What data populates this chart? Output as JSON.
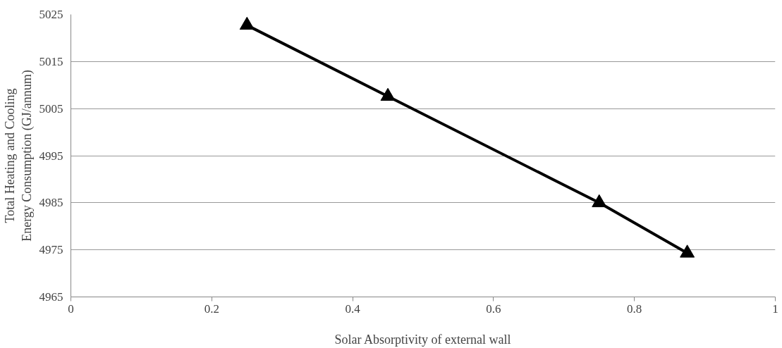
{
  "chart_data": {
    "type": "line",
    "xlabel": "Solar Absorptivity of external wall",
    "ylabel": "Total Heating and Cooling Energy Consumption (GJ/annum)",
    "x": [
      0.25,
      0.45,
      0.75,
      0.875
    ],
    "series": [
      {
        "color": "#000000",
        "values": [
          5022.7,
          5007.6,
          4985,
          4974.3
        ]
      }
    ],
    "xlim": [
      0,
      1
    ],
    "xticks": [
      0,
      0.2,
      0.4,
      0.6,
      0.8,
      1
    ],
    "ylim": [
      4965,
      5025
    ],
    "yticks": [
      4965,
      4975,
      4985,
      4995,
      5005,
      5015,
      5025
    ],
    "grid": "y",
    "marker": "triangle",
    "line_style": "solid"
  }
}
